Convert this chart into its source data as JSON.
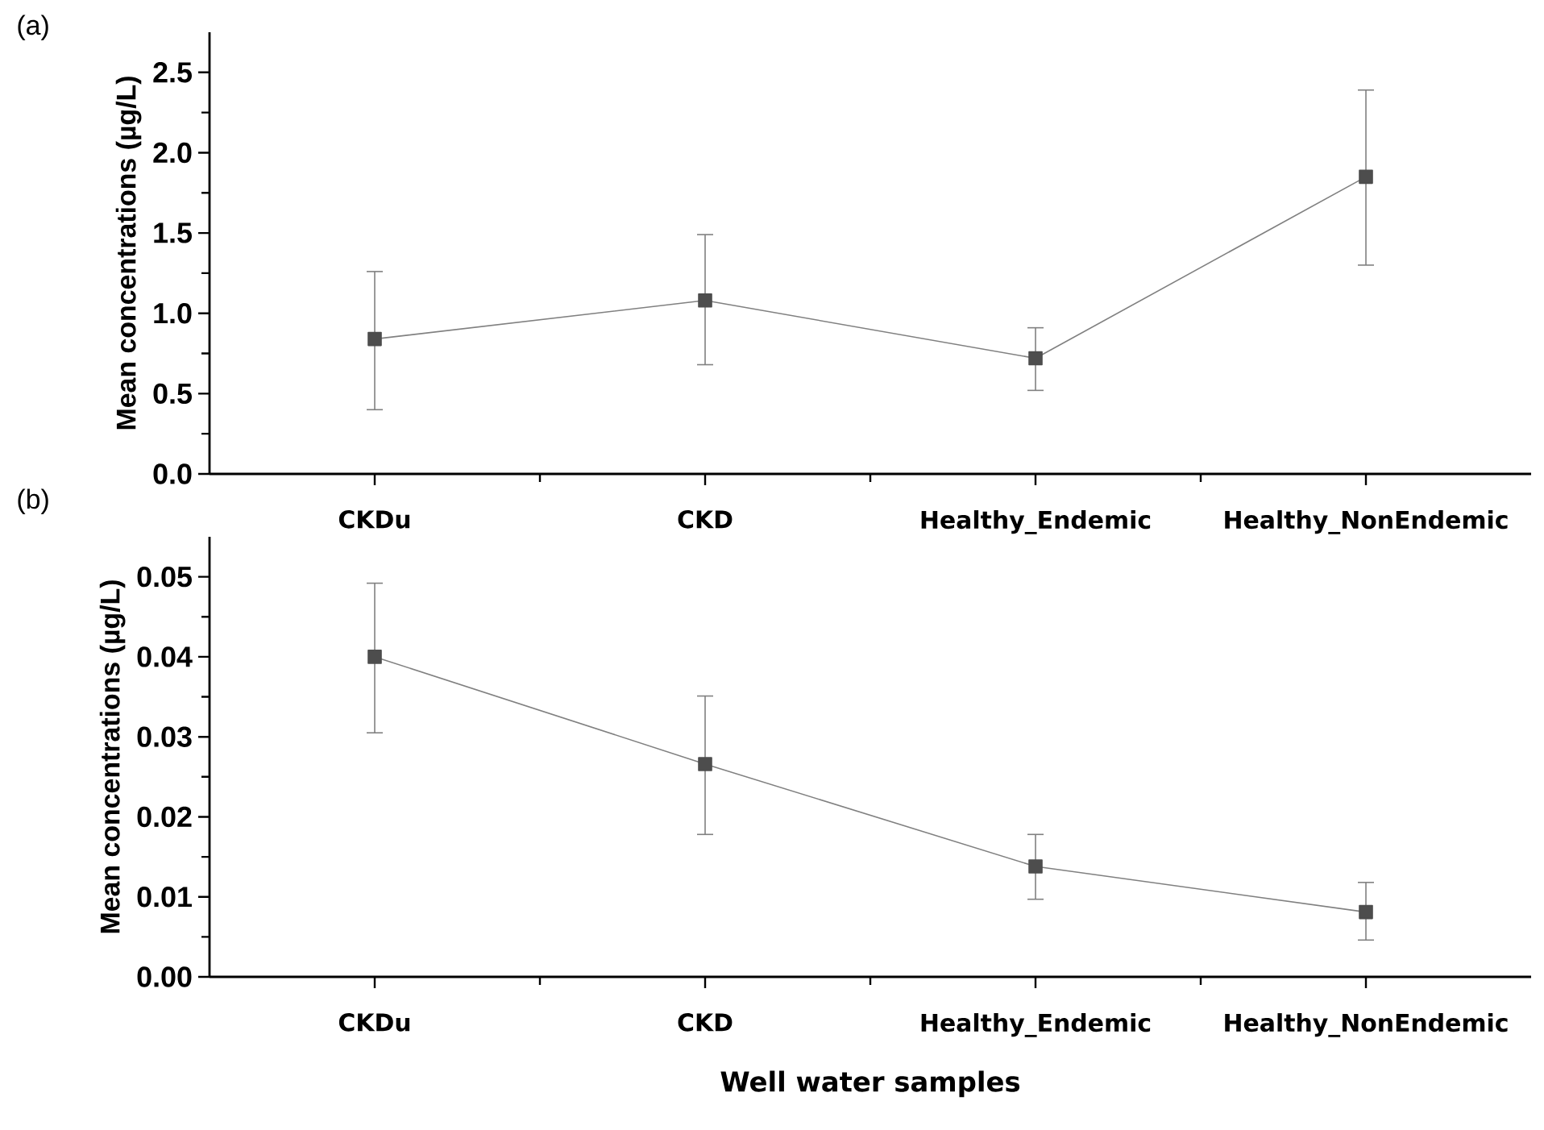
{
  "chart_data": [
    {
      "type": "line",
      "annotations": [
        "(a)"
      ],
      "ylabel": "Mean concentrations (µg/L)",
      "categories": [
        "CKDu",
        "CKD",
        "Healthy_Endemic",
        "Healthy_NonEndemic"
      ],
      "values": [
        0.84,
        1.08,
        0.72,
        1.85
      ],
      "errors": [
        [
          0.4,
          1.26
        ],
        [
          0.68,
          1.49
        ],
        [
          0.52,
          0.91
        ],
        [
          1.3,
          2.39
        ]
      ],
      "color": "#4d4d4d",
      "marker": "square",
      "ylim": [
        0,
        2.75
      ],
      "yticks": [
        {
          "value": 0,
          "label": "0.0"
        },
        {
          "value": 0.5,
          "label": "0.5"
        },
        {
          "value": 1,
          "label": "1.0"
        },
        {
          "value": 1.5,
          "label": "1.5"
        },
        {
          "value": 2,
          "label": "2.0"
        },
        {
          "value": 2.5,
          "label": "2.5"
        }
      ]
    },
    {
      "type": "line",
      "annotations": [
        "(b)"
      ],
      "ylabel": "Mean concentrations (µg/L)",
      "xlabel": "Well water samples",
      "categories": [
        "CKDu",
        "CKD",
        "Healthy_Endemic",
        "Healthy_NonEndemic"
      ],
      "values": [
        0.04,
        0.0266,
        0.0138,
        0.0081
      ],
      "errors": [
        [
          0.0305,
          0.0492
        ],
        [
          0.0178,
          0.0351
        ],
        [
          0.0097,
          0.0178
        ],
        [
          0.0046,
          0.0118
        ]
      ],
      "color": "#4d4d4d",
      "marker": "square",
      "ylim": [
        0,
        0.055
      ],
      "yticks": [
        {
          "value": 0,
          "label": "0.00"
        },
        {
          "value": 0.01,
          "label": "0.01"
        },
        {
          "value": 0.02,
          "label": "0.02"
        },
        {
          "value": 0.03,
          "label": "0.03"
        },
        {
          "value": 0.04,
          "label": "0.04"
        },
        {
          "value": 0.05,
          "label": "0.05"
        }
      ]
    }
  ]
}
